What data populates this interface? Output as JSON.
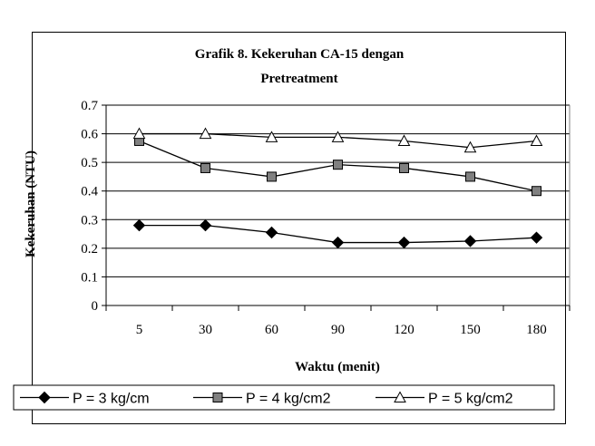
{
  "chart_data": {
    "type": "line",
    "title": "Grafik 8. Kekeruhan CA-15 dengan",
    "subtitle": "Pretreatment",
    "xlabel": "Waktu (menit)",
    "ylabel": "Kekeruhan (NTU)",
    "categories": [
      "5",
      "30",
      "60",
      "90",
      "120",
      "150",
      "180"
    ],
    "ylim": [
      0,
      0.7
    ],
    "yticks": [
      "0",
      "0.1",
      "0.2",
      "0.3",
      "0.4",
      "0.5",
      "0.6",
      "0.7"
    ],
    "grid": true,
    "legend_position": "bottom",
    "series": [
      {
        "name": "P = 3 kg/cm",
        "marker": "diamond",
        "color": "#000000",
        "values": [
          0.28,
          0.28,
          0.255,
          0.22,
          0.22,
          0.225,
          0.237
        ]
      },
      {
        "name": "P = 4 kg/cm2",
        "marker": "square",
        "color": "#808080",
        "values": [
          0.575,
          0.48,
          0.45,
          0.492,
          0.48,
          0.45,
          0.4
        ]
      },
      {
        "name": "P = 5 kg/cm2",
        "marker": "triangle",
        "color": "#ffffff",
        "values": [
          0.6,
          0.6,
          0.588,
          0.588,
          0.575,
          0.552,
          0.575
        ]
      }
    ]
  }
}
